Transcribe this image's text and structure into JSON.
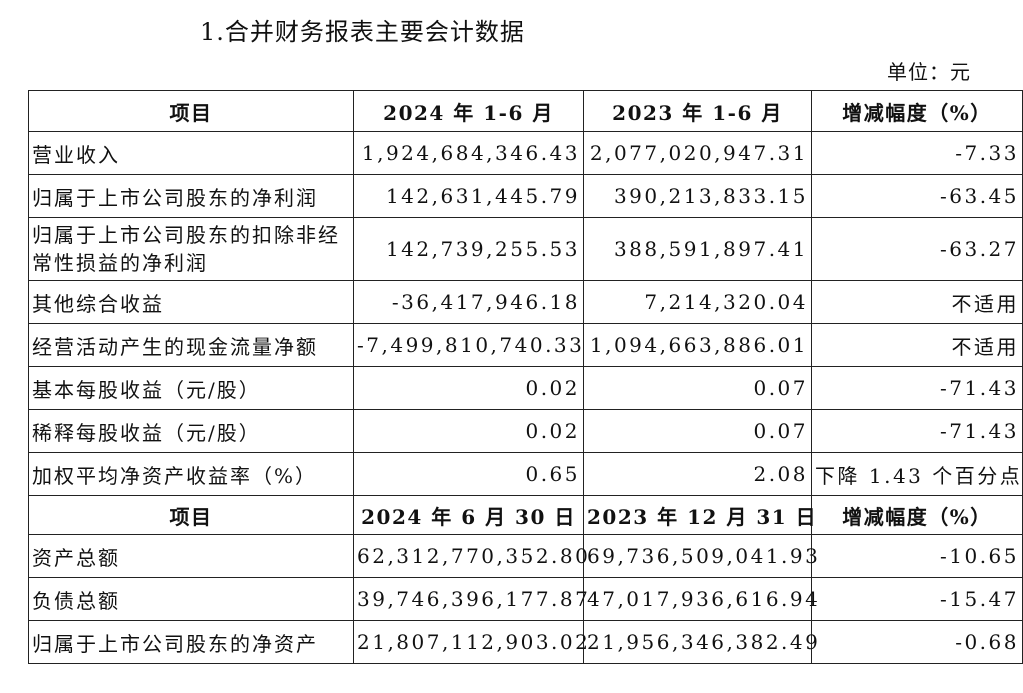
{
  "title": "1.合并财务报表主要会计数据",
  "unit": "单位：元",
  "table1": {
    "headers": [
      "项目",
      "2024 年 1-6 月",
      "2023 年 1-6 月",
      "增减幅度（%）"
    ],
    "rows": [
      [
        "营业收入",
        "1,924,684,346.43",
        "2,077,020,947.31",
        "-7.33"
      ],
      [
        "归属于上市公司股东的净利润",
        "142,631,445.79",
        "390,213,833.15",
        "-63.45"
      ],
      [
        "归属于上市公司股东的扣除非经常性损益的净利润",
        "142,739,255.53",
        "388,591,897.41",
        "-63.27"
      ],
      [
        "其他综合收益",
        "-36,417,946.18",
        "7,214,320.04",
        "不适用"
      ],
      [
        "经营活动产生的现金流量净额",
        "-7,499,810,740.33",
        "1,094,663,886.01",
        "不适用"
      ],
      [
        "基本每股收益（元/股）",
        "0.02",
        "0.07",
        "-71.43"
      ],
      [
        "稀释每股收益（元/股）",
        "0.02",
        "0.07",
        "-71.43"
      ],
      [
        "加权平均净资产收益率（%）",
        "0.65",
        "2.08",
        "下降 1.43 个百分点"
      ]
    ]
  },
  "table2": {
    "headers": [
      "项目",
      "2024 年 6 月 30 日",
      "2023 年 12 月 31 日",
      "增减幅度（%）"
    ],
    "rows": [
      [
        "资产总额",
        "62,312,770,352.80",
        "69,736,509,041.93",
        "-10.65"
      ],
      [
        "负债总额",
        "39,746,396,177.87",
        "47,017,936,616.94",
        "-15.47"
      ],
      [
        "归属于上市公司股东的净资产",
        "21,807,112,903.02",
        "21,956,346,382.49",
        "-0.68"
      ]
    ]
  }
}
